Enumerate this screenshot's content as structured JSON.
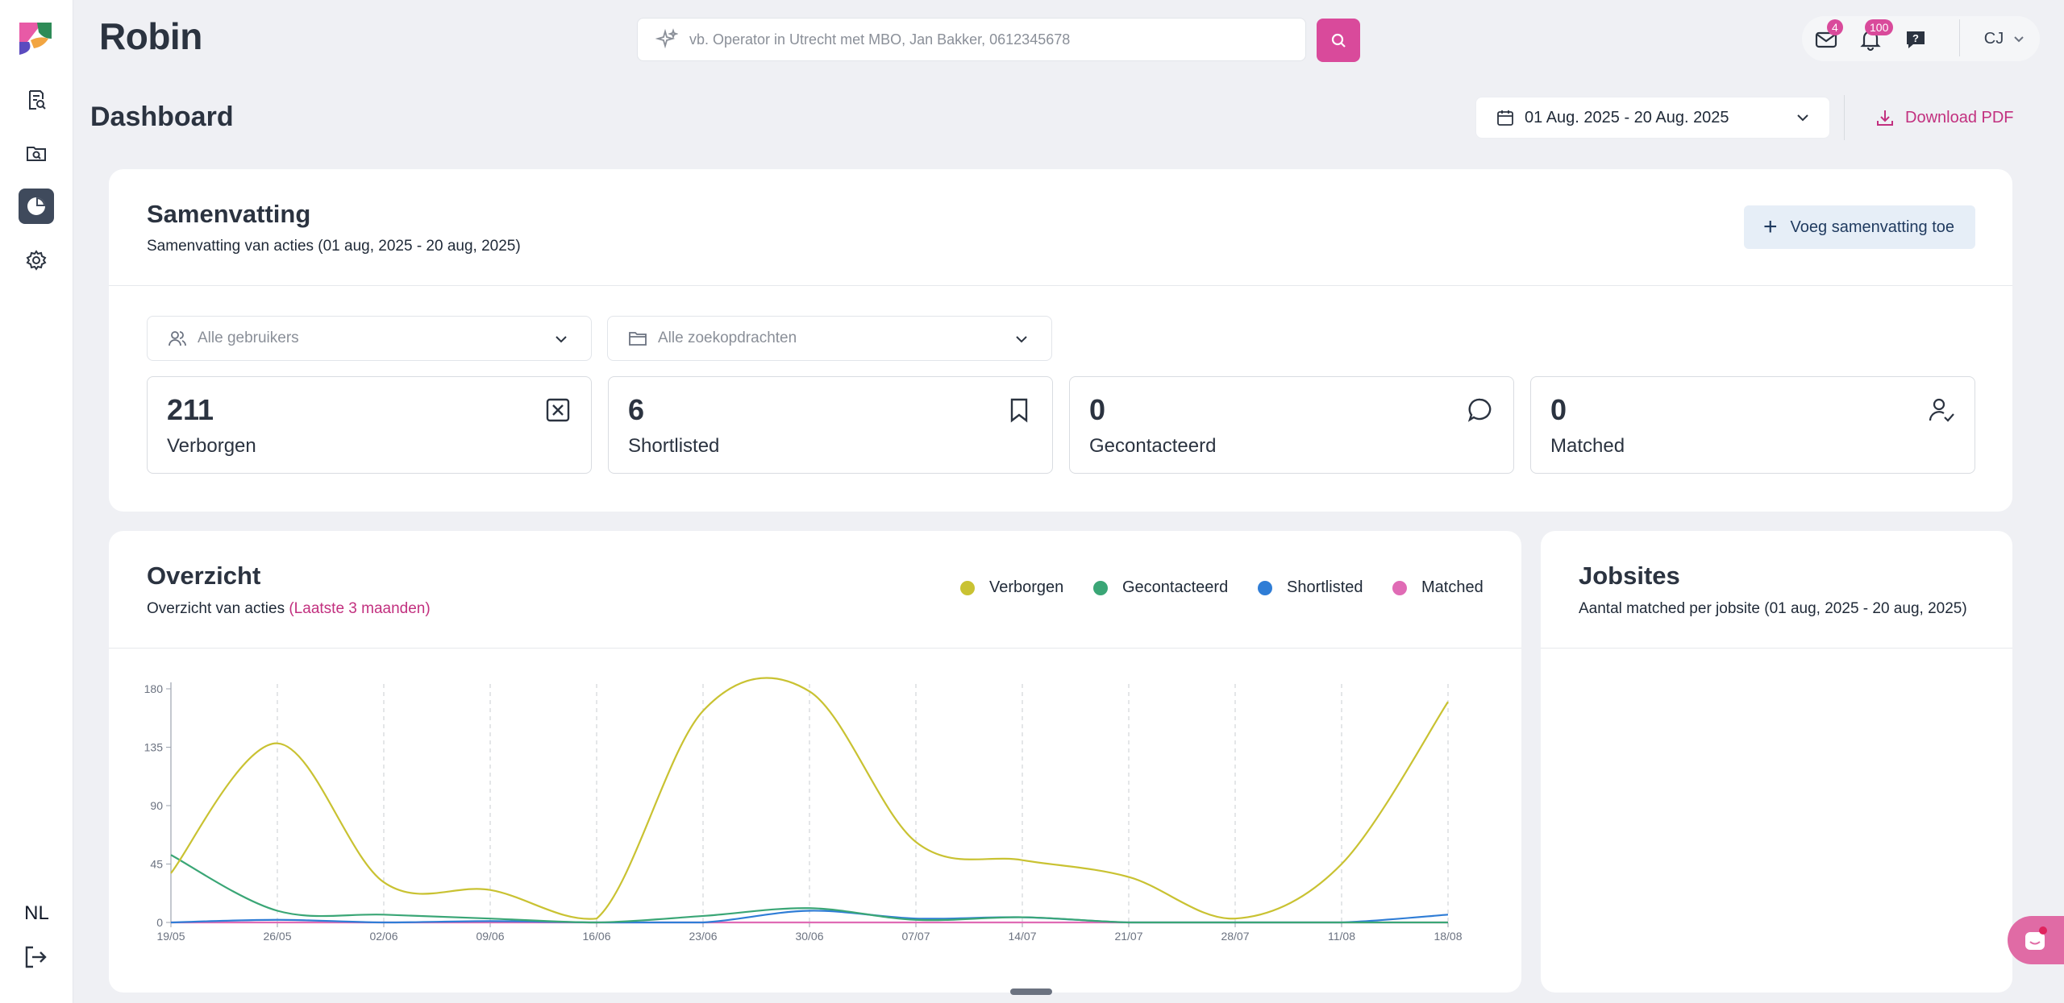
{
  "app": {
    "brand": "Robin",
    "language": "NL"
  },
  "search": {
    "placeholder": "vb. Operator in Utrecht met MBO, Jan Bakker, 0612345678"
  },
  "header": {
    "mail_count": "4",
    "notification_count": "100",
    "user_initials": "CJ"
  },
  "page": {
    "title": "Dashboard",
    "date_range": "01 Aug. 2025 - 20 Aug. 2025",
    "download_label": "Download PDF"
  },
  "summary": {
    "title": "Samenvatting",
    "subtitle": "Samenvatting van acties (01 aug, 2025 - 20 aug, 2025)",
    "add_label": "Voeg samenvatting toe",
    "filter_users": "Alle gebruikers",
    "filter_searches": "Alle zoekopdrachten",
    "stats": [
      {
        "value": "211",
        "label": "Verborgen",
        "icon": "x-square-icon"
      },
      {
        "value": "6",
        "label": "Shortlisted",
        "icon": "bookmark-icon"
      },
      {
        "value": "0",
        "label": "Gecontacteerd",
        "icon": "chat-icon"
      },
      {
        "value": "0",
        "label": "Matched",
        "icon": "user-check-icon"
      }
    ]
  },
  "overview": {
    "title": "Overzicht",
    "subtitle": "Overzicht van acties",
    "subtitle_period": "(Laatste 3 maanden)"
  },
  "jobsites": {
    "title": "Jobsites",
    "subtitle": "Aantal matched per jobsite (01 aug, 2025 - 20 aug, 2025)"
  },
  "colors": {
    "accent": "#d94a9b",
    "verborgen": "#c9c232",
    "gecontacteerd": "#3aa676",
    "shortlisted": "#2f7dd6",
    "matched": "#e06bb5"
  },
  "chart_data": {
    "type": "line",
    "x": [
      "19/05",
      "26/05",
      "02/06",
      "09/06",
      "16/06",
      "23/06",
      "30/06",
      "07/07",
      "14/07",
      "21/07",
      "28/07",
      "11/08",
      "18/08"
    ],
    "ylim": [
      0,
      180
    ],
    "yticks": [
      0,
      45,
      90,
      135,
      180
    ],
    "grid": "vertical dashed",
    "legend_position": "top-right",
    "series": [
      {
        "name": "Verborgen",
        "values": [
          38,
          138,
          31,
          25,
          3,
          163,
          178,
          62,
          48,
          35,
          3,
          45,
          170
        ]
      },
      {
        "name": "Gecontacteerd",
        "values": [
          52,
          9,
          6,
          3,
          0,
          5,
          11,
          2,
          4,
          0,
          0,
          0,
          0
        ]
      },
      {
        "name": "Shortlisted",
        "values": [
          0,
          2,
          0,
          1,
          0,
          0,
          9,
          3,
          4,
          0,
          0,
          0,
          6
        ]
      },
      {
        "name": "Matched",
        "values": [
          0,
          0,
          0,
          0,
          0,
          0,
          0,
          0,
          0,
          0,
          0,
          0,
          0
        ]
      }
    ]
  }
}
